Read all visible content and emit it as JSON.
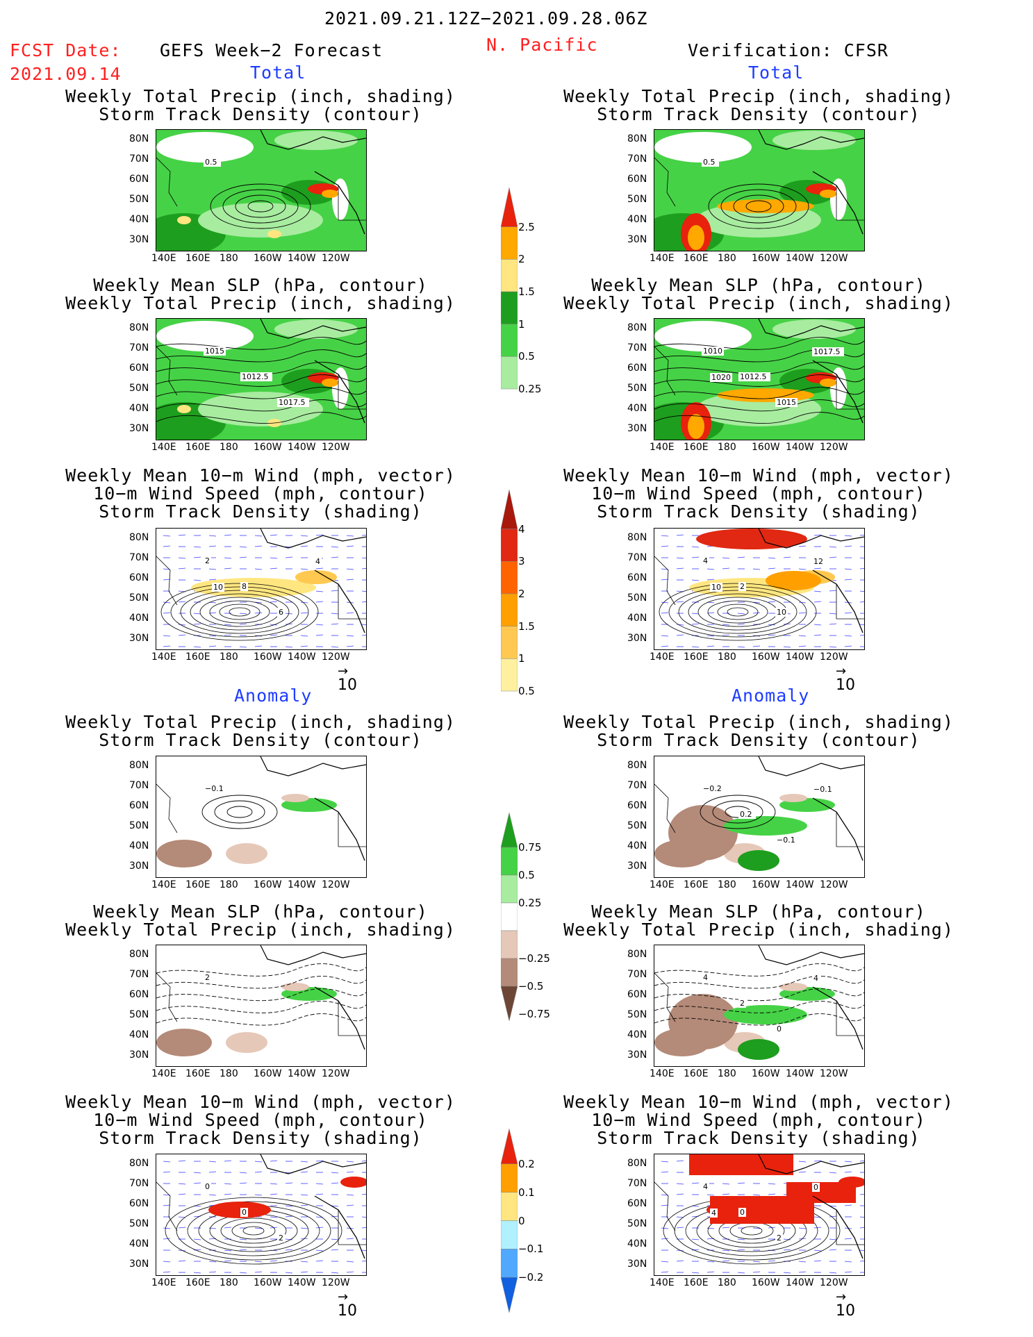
{
  "header": {
    "period": "2021.09.21.12Z−2021.09.28.06Z",
    "region": "N. Pacific",
    "fcst_date_label": "FCST Date:",
    "fcst_date": "2021.09.14",
    "left_title": "GEFS Week−2 Forecast",
    "right_title": "Verification: CFSR"
  },
  "sections": {
    "total": "Total",
    "anomaly": "Anomaly"
  },
  "panel_titles": {
    "precip_track": "Weekly Total Precip (inch, shading)\nStorm Track Density (contour)",
    "slp_precip": "Weekly Mean SLP (hPa, contour)\nWeekly Total Precip (inch, shading)",
    "wind_track": "Weekly Mean 10−m Wind (mph, vector)\n10−m Wind Speed (mph, contour)\nStorm Track Density (shading)"
  },
  "axes": {
    "lat_ticks": [
      "80N",
      "70N",
      "60N",
      "50N",
      "40N",
      "30N"
    ],
    "lon_ticks": [
      "140E",
      "160E",
      "180",
      "160W",
      "140W",
      "120W"
    ]
  },
  "vector_ref": "10",
  "colorbars": {
    "precip_total": {
      "labels": [
        "2.5",
        "2",
        "1.5",
        "1",
        "0.5",
        "0.25"
      ],
      "colors": [
        "#e8220c",
        "#ffa800",
        "#ffe680",
        "#1e9e1e",
        "#46d246",
        "#a8eca0"
      ]
    },
    "track_total": {
      "labels": [
        "4",
        "3",
        "2",
        "1.5",
        "1",
        "0.5"
      ],
      "colors": [
        "#a8180c",
        "#e02812",
        "#ff6400",
        "#ffa000",
        "#ffc850",
        "#fff0a0"
      ]
    },
    "precip_anom": {
      "labels": [
        "0.75",
        "0.5",
        "0.25",
        "−0.25",
        "−0.5",
        "−0.75"
      ],
      "colors": [
        "#1e9e1e",
        "#46d246",
        "#a8eca0",
        "#ffffff",
        "#e6c8b8",
        "#b48a78",
        "#6e4636"
      ]
    },
    "track_anom": {
      "labels": [
        "0.2",
        "0.1",
        "0",
        "−0.1",
        "−0.2"
      ],
      "colors": [
        "#e8220c",
        "#ffa000",
        "#ffe680",
        "#b0f0ff",
        "#50a8ff",
        "#1060e0"
      ]
    }
  },
  "contour_labels": {
    "r1_left": [
      "0.5"
    ],
    "r1_right": [
      "0.5"
    ],
    "r2_left": [
      "1015",
      "1012.5",
      "1017.5"
    ],
    "r2_right": [
      "1010",
      "1012.5",
      "1015",
      "1017.5",
      "1020"
    ],
    "r3_left": [
      "2",
      "8",
      "6",
      "4",
      "10"
    ],
    "r3_right": [
      "4",
      "2",
      "10",
      "12",
      "10"
    ],
    "r4_left": [
      "−0.1"
    ],
    "r4_right": [
      "−0.2",
      "0.2",
      "−0.1",
      "−0.1"
    ],
    "r5_left": [
      "2"
    ],
    "r5_right": [
      "4",
      "2",
      "0",
      "4"
    ],
    "r6_left": [
      "0",
      "0",
      "2"
    ],
    "r6_right": [
      "4",
      "0",
      "2",
      "0",
      "4"
    ]
  }
}
